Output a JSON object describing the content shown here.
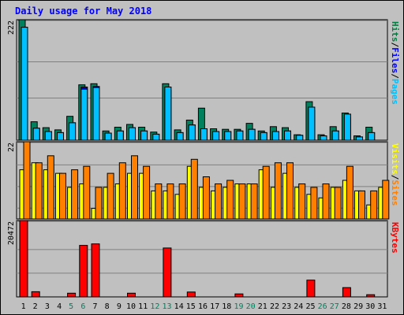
{
  "chart_data": {
    "type": "bar",
    "title": "Daily usage for May 2018",
    "categories": [
      "1",
      "2",
      "3",
      "4",
      "5",
      "6",
      "7",
      "8",
      "9",
      "10",
      "11",
      "12",
      "13",
      "14",
      "15",
      "16",
      "17",
      "18",
      "19",
      "20",
      "21",
      "22",
      "23",
      "24",
      "25",
      "26",
      "27",
      "28",
      "29",
      "30",
      "31"
    ],
    "weekend_days": [
      "5",
      "6",
      "12",
      "13",
      "19",
      "20",
      "26",
      "27"
    ],
    "panels": [
      {
        "id": "top",
        "max_label": "222",
        "ylim": [
          0,
          222
        ],
        "grid": true,
        "legend": [
          {
            "label": "Pages",
            "color": "#00c0ff"
          },
          {
            "label": "Files",
            "color": "#0000ff"
          },
          {
            "label": "Hits",
            "color": "#008040"
          }
        ],
        "series": [
          {
            "name": "Hits",
            "color": "#00805c",
            "values": [
              222,
              34,
              23,
              19,
              44,
              102,
              104,
              17,
              24,
              29,
              24,
              15,
              104,
              19,
              37,
              59,
              21,
              20,
              20,
              31,
              17,
              25,
              23,
              10,
              71,
              10,
              25,
              50,
              8,
              24,
              0
            ]
          },
          {
            "name": "Files",
            "color": "#0000ff",
            "values": [
              208,
              22,
              16,
              14,
              32,
              98,
              99,
              13,
              17,
              23,
              17,
              11,
              92,
              14,
              28,
              21,
              16,
              16,
              17,
              20,
              14,
              16,
              17,
              9,
              55,
              8,
              17,
              42,
              6,
              14,
              0
            ]
          },
          {
            "name": "Pages",
            "color": "#00c0ff",
            "values": [
              208,
              22,
              16,
              14,
              32,
              94,
              97,
              13,
              17,
              23,
              17,
              11,
              98,
              14,
              28,
              21,
              16,
              16,
              17,
              20,
              14,
              16,
              17,
              9,
              61,
              8,
              17,
              48,
              6,
              14,
              0
            ]
          }
        ]
      },
      {
        "id": "middle",
        "max_label": "22",
        "ylim": [
          0,
          22
        ],
        "grid": true,
        "legend": [
          {
            "label": "Sites",
            "color": "#ff8000"
          },
          {
            "label": "Visits",
            "color": "#ffff00"
          }
        ],
        "series": [
          {
            "name": "Visits",
            "color": "#ffff00",
            "values": [
              14,
              16,
              14,
              13,
              9,
              10,
              3,
              9,
              10,
              13,
              13,
              8,
              8,
              7,
              15,
              9,
              8,
              9,
              10,
              10,
              14,
              9,
              13,
              9,
              7,
              6,
              9,
              11,
              8,
              4,
              9
            ]
          },
          {
            "name": "Sites",
            "color": "#ff8000",
            "values": [
              22,
              16,
              18,
              13,
              14,
              15,
              9,
              13,
              16,
              18,
              15,
              10,
              10,
              10,
              17,
              12,
              10,
              11,
              10,
              10,
              15,
              16,
              16,
              10,
              9,
              10,
              9,
              15,
              8,
              8,
              11
            ]
          }
        ]
      },
      {
        "id": "bottom",
        "max_label": "20472",
        "ylim": [
          0,
          20472
        ],
        "grid": true,
        "legend": [
          {
            "label": "KBytes",
            "color": "#ff0000"
          }
        ],
        "series": [
          {
            "name": "KBytes",
            "color": "#ff0000",
            "values": [
              20472,
              1400,
              0,
              0,
              1000,
              13800,
              14200,
              0,
              0,
              1000,
              0,
              0,
              13100,
              0,
              1300,
              0,
              0,
              0,
              800,
              0,
              0,
              0,
              0,
              0,
              4500,
              0,
              0,
              2500,
              0,
              600,
              0
            ]
          }
        ]
      }
    ]
  }
}
